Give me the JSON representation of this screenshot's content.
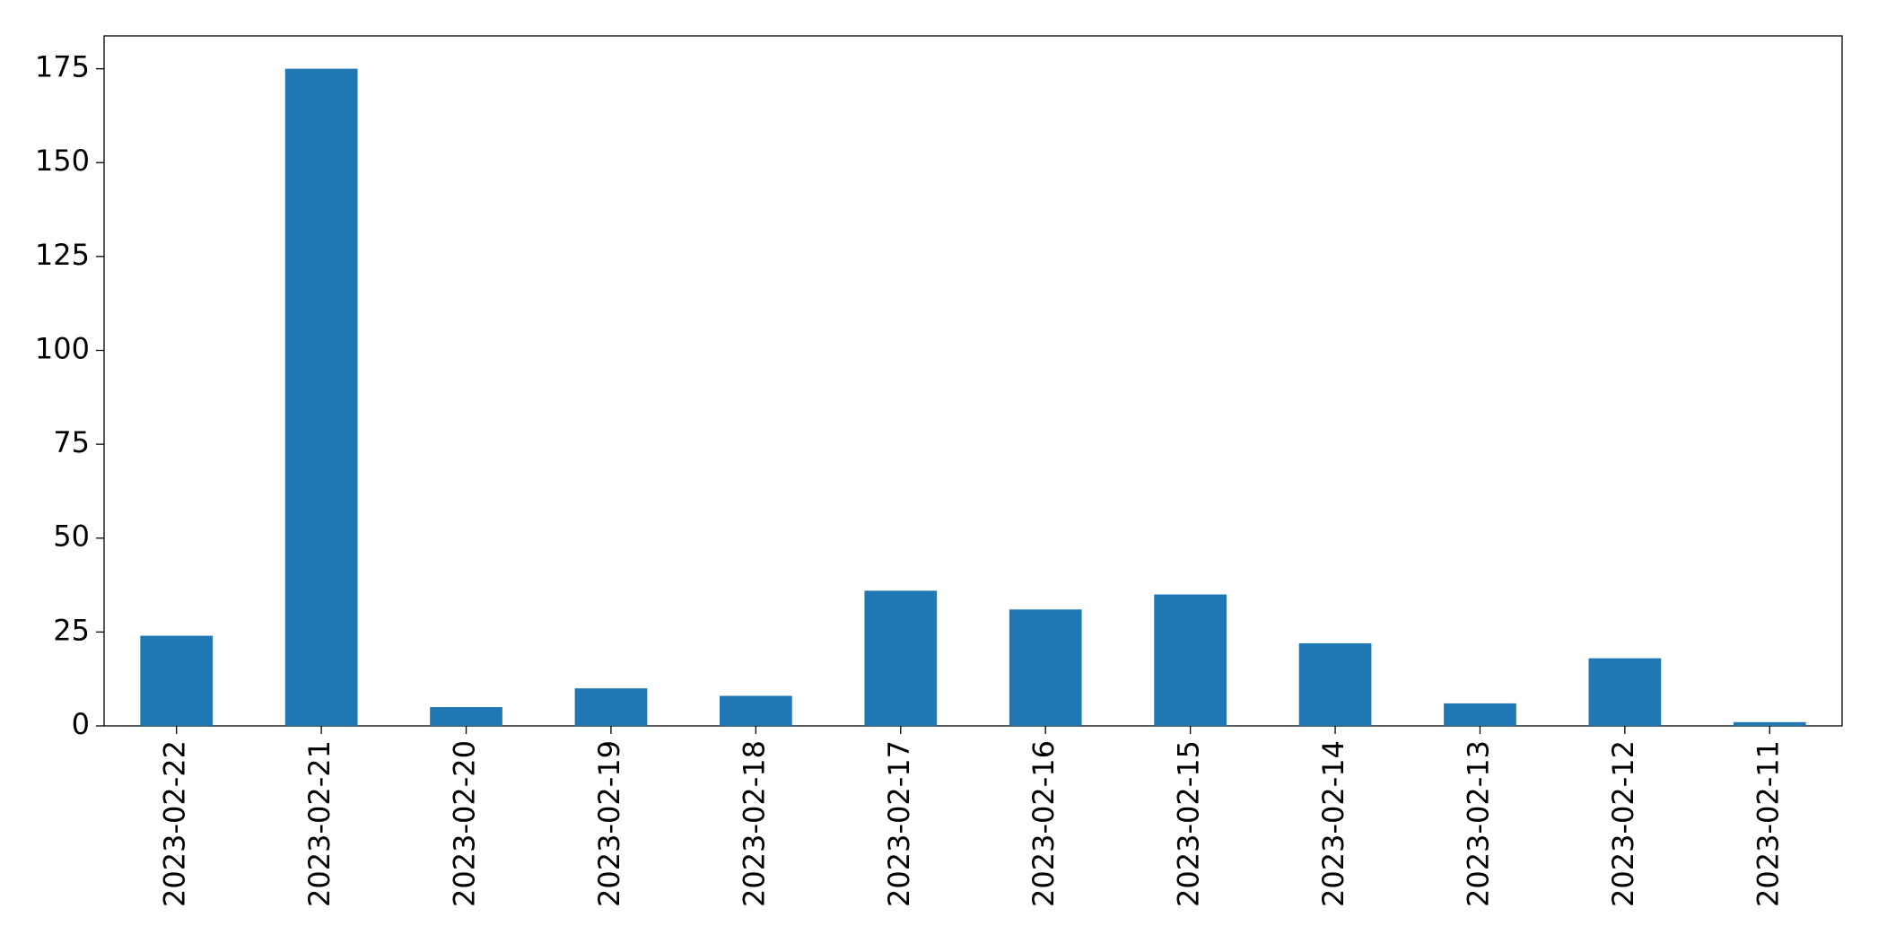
{
  "chart_data": {
    "type": "bar",
    "categories": [
      "2023-02-22",
      "2023-02-21",
      "2023-02-20",
      "2023-02-19",
      "2023-02-18",
      "2023-02-17",
      "2023-02-16",
      "2023-02-15",
      "2023-02-14",
      "2023-02-13",
      "2023-02-12",
      "2023-02-11"
    ],
    "values": [
      24,
      175,
      5,
      10,
      8,
      36,
      31,
      35,
      22,
      6,
      18,
      1
    ],
    "color": "#1f77b4",
    "ylim": [
      0,
      183.75
    ],
    "yticks": [
      0,
      25,
      50,
      75,
      100,
      125,
      150,
      175
    ],
    "grid": false
  }
}
